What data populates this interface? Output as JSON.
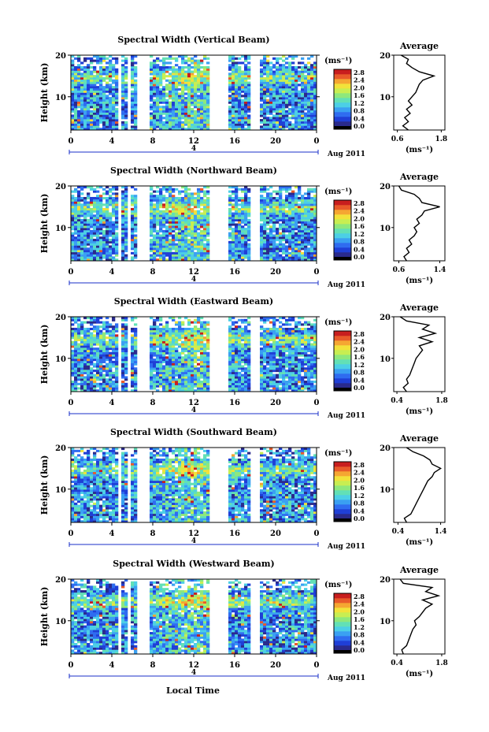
{
  "colors": {
    "colormap": [
      "#2a2a8c",
      "#1f3fd6",
      "#2f6cf0",
      "#3aa0f2",
      "#4ccfe6",
      "#62e0b6",
      "#8ee87c",
      "#c8ee52",
      "#f2e23a",
      "#f5a632",
      "#e85a2a",
      "#c81e1e"
    ],
    "lowbar": "#000000",
    "axis": "#000000",
    "date_marker": "#1a2fc8"
  },
  "shared": {
    "xlabel": "Local Time",
    "date_label": "Aug 2011",
    "date_tick": "4",
    "ylabel": "Height (km)",
    "colorbar_unit": "(ms⁻¹)",
    "colorbar_ticks": [
      "2.8",
      "2.4",
      "2.0",
      "1.6",
      "1.2",
      "0.8",
      "0.4",
      "0.0"
    ],
    "average_title": "Average",
    "average_xlabel": "(ms⁻¹)",
    "x_ticks": [
      "0",
      "4",
      "8",
      "12",
      "16",
      "20",
      "0"
    ],
    "y_ticks": [
      "20",
      "10"
    ]
  },
  "chart_data": [
    {
      "type": "heatmap",
      "title": "Spectral Width (Vertical Beam)",
      "xlabel": "Local Time",
      "ylabel": "Height (km)",
      "xlim": [
        0,
        24
      ],
      "ylim": [
        2,
        20
      ],
      "gaps_hours": [
        [
          4.5,
          5.0
        ],
        [
          5.6,
          5.9
        ],
        [
          6.6,
          7.6
        ],
        [
          13.5,
          15.3
        ],
        [
          17.6,
          18.6
        ]
      ],
      "clim": [
        0.0,
        3.0
      ],
      "average": {
        "xticks": [
          "0.6",
          "1.8"
        ],
        "xlim": [
          0.5,
          1.9
        ],
        "height": [
          2,
          3,
          4,
          5,
          6,
          7,
          8,
          9,
          10,
          11,
          12,
          13,
          14,
          15,
          16,
          17,
          18,
          19,
          20
        ],
        "value": [
          0.9,
          0.75,
          0.9,
          0.8,
          0.95,
          0.85,
          1.0,
          0.9,
          1.0,
          1.1,
          1.15,
          1.2,
          1.3,
          1.6,
          1.2,
          1.0,
          0.85,
          0.9,
          0.7
        ]
      }
    },
    {
      "type": "heatmap",
      "title": "Spectral Width (Northward Beam)",
      "xlabel": "Local Time",
      "ylabel": "Height (km)",
      "xlim": [
        0,
        24
      ],
      "ylim": [
        2,
        20
      ],
      "gaps_hours": [
        [
          4.5,
          5.0
        ],
        [
          5.6,
          5.9
        ],
        [
          6.6,
          7.6
        ],
        [
          13.5,
          15.3
        ],
        [
          17.6,
          18.6
        ]
      ],
      "clim": [
        0.0,
        3.0
      ],
      "average": {
        "xticks": [
          "0.6",
          "1.4"
        ],
        "xlim": [
          0.5,
          1.5
        ],
        "height": [
          2,
          3,
          4,
          5,
          6,
          7,
          8,
          9,
          10,
          11,
          12,
          13,
          14,
          15,
          16,
          17,
          18,
          19,
          20
        ],
        "value": [
          0.75,
          0.7,
          0.8,
          0.75,
          0.85,
          0.8,
          0.9,
          0.95,
          0.9,
          1.0,
          0.95,
          1.05,
          1.1,
          1.4,
          1.05,
          1.0,
          0.9,
          0.65,
          0.6
        ]
      }
    },
    {
      "type": "heatmap",
      "title": "Spectral Width (Eastward Beam)",
      "xlabel": "Local Time",
      "ylabel": "Height (km)",
      "xlim": [
        0,
        24
      ],
      "ylim": [
        2,
        20
      ],
      "gaps_hours": [
        [
          4.5,
          5.0
        ],
        [
          5.6,
          5.9
        ],
        [
          6.6,
          7.6
        ],
        [
          13.5,
          15.3
        ],
        [
          17.6,
          18.6
        ]
      ],
      "clim": [
        0.0,
        3.0
      ],
      "average": {
        "xticks": [
          "0.4",
          "1.8"
        ],
        "xlim": [
          0.3,
          1.9
        ],
        "height": [
          2,
          3,
          4,
          5,
          6,
          7,
          8,
          9,
          10,
          11,
          12,
          13,
          14,
          15,
          16,
          17,
          18,
          19,
          20
        ],
        "value": [
          0.7,
          0.6,
          0.75,
          0.7,
          0.8,
          0.85,
          0.9,
          0.95,
          1.0,
          1.1,
          1.2,
          1.1,
          1.5,
          1.1,
          1.6,
          1.2,
          1.4,
          0.7,
          0.5
        ]
      }
    },
    {
      "type": "heatmap",
      "title": "Spectral Width (Southward Beam)",
      "xlabel": "Local Time",
      "ylabel": "Height (km)",
      "xlim": [
        0,
        24
      ],
      "ylim": [
        2,
        20
      ],
      "gaps_hours": [
        [
          4.5,
          5.0
        ],
        [
          5.6,
          5.9
        ],
        [
          6.6,
          7.6
        ],
        [
          13.5,
          15.3
        ],
        [
          17.6,
          18.6
        ]
      ],
      "clim": [
        0.0,
        3.0
      ],
      "average": {
        "xticks": [
          "0.4",
          "1.4"
        ],
        "xlim": [
          0.3,
          1.5
        ],
        "height": [
          2,
          3,
          4,
          5,
          6,
          7,
          8,
          9,
          10,
          11,
          12,
          13,
          14,
          15,
          16,
          17,
          18,
          19,
          20
        ],
        "value": [
          0.6,
          0.55,
          0.7,
          0.75,
          0.8,
          0.85,
          0.9,
          0.95,
          1.0,
          1.05,
          1.1,
          1.2,
          1.25,
          1.4,
          1.2,
          1.15,
          1.0,
          0.75,
          0.6
        ]
      }
    },
    {
      "type": "heatmap",
      "title": "Spectral Width (Westward Beam)",
      "xlabel": "Local Time",
      "ylabel": "Height (km)",
      "xlim": [
        0,
        24
      ],
      "ylim": [
        2,
        20
      ],
      "gaps_hours": [
        [
          4.5,
          5.0
        ],
        [
          5.6,
          5.9
        ],
        [
          6.6,
          7.6
        ],
        [
          13.5,
          15.3
        ],
        [
          17.6,
          18.6
        ]
      ],
      "clim": [
        0.0,
        3.0
      ],
      "average": {
        "xticks": [
          "0.4",
          "1.8"
        ],
        "xlim": [
          0.3,
          1.9
        ],
        "height": [
          2,
          3,
          4,
          5,
          6,
          7,
          8,
          9,
          10,
          11,
          12,
          13,
          14,
          15,
          16,
          17,
          18,
          19,
          20
        ],
        "value": [
          0.6,
          0.55,
          0.7,
          0.75,
          0.8,
          0.85,
          0.9,
          1.0,
          0.95,
          1.1,
          1.2,
          1.3,
          1.5,
          1.2,
          1.7,
          1.3,
          1.5,
          0.6,
          0.5
        ]
      }
    }
  ]
}
